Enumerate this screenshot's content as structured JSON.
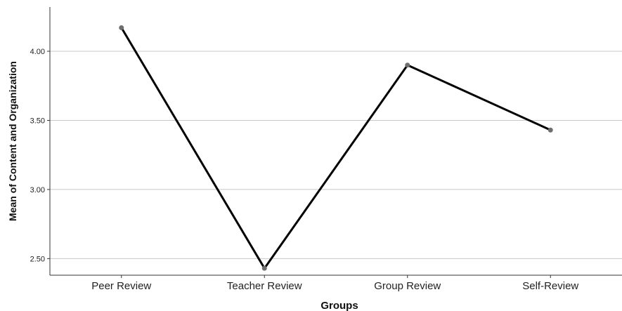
{
  "chart_data": {
    "type": "line",
    "title": "",
    "xlabel": "Groups",
    "ylabel": "Mean of Content and Organization",
    "categories": [
      "Peer Review",
      "Teacher Review",
      "Group Review",
      "Self-Review"
    ],
    "series": [
      {
        "values": [
          4.17,
          2.43,
          3.9,
          3.43
        ]
      }
    ],
    "ylim": [
      2.38,
      4.32
    ],
    "yticks": [
      2.5,
      3.0,
      3.5,
      4.0
    ],
    "ytick_labels": [
      "2.50",
      "3.00",
      "3.50",
      "4.00"
    ],
    "grid": true,
    "colors": {
      "line": "#000000",
      "marker": "#6e6e6e",
      "grid": "#c8c8c8",
      "axis": "#333333"
    }
  }
}
